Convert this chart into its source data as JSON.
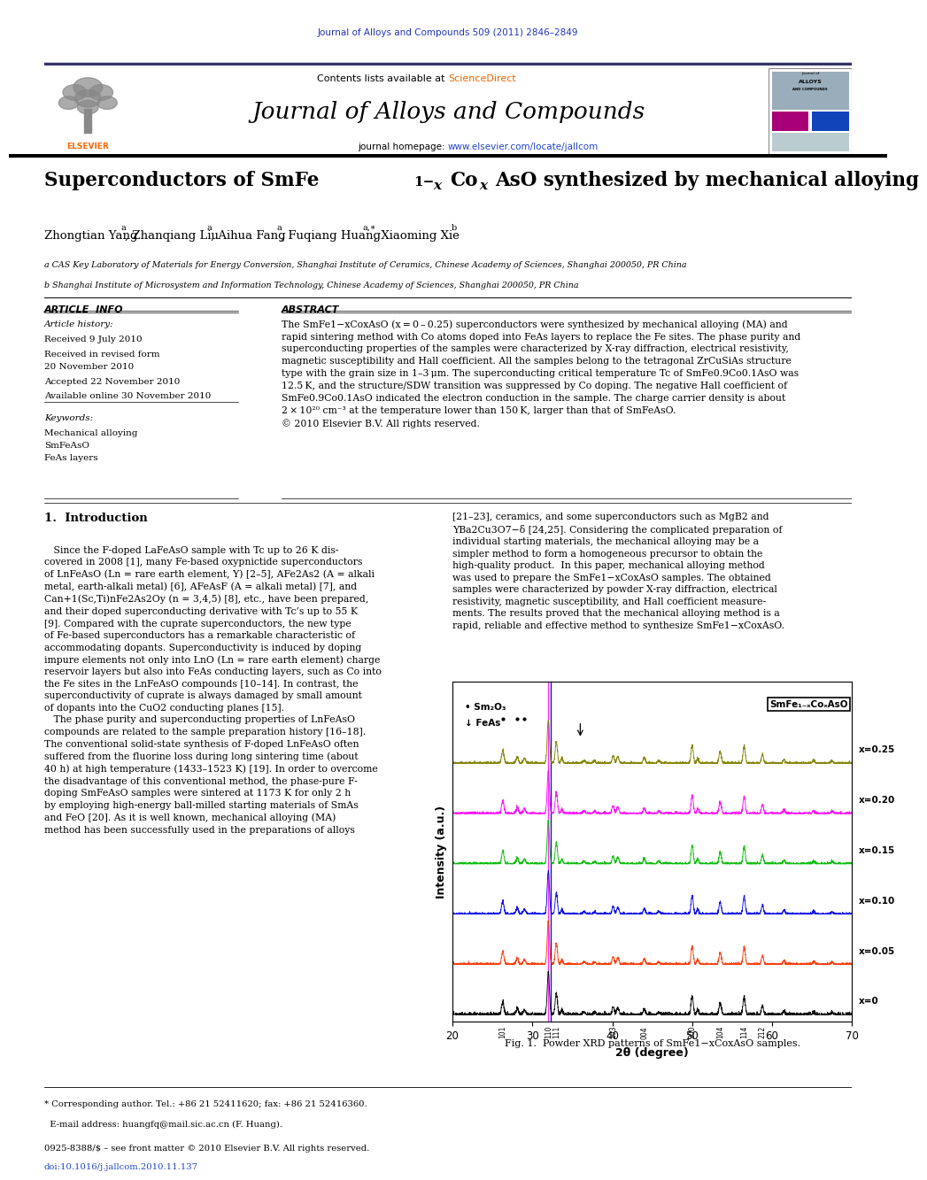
{
  "page_title": "Journal of Alloys and Compounds 509 (2011) 2846–2849",
  "journal_name": "Journal of Alloys and Compounds",
  "journal_homepage_prefix": "journal homepage: ",
  "journal_homepage_url": "www.elsevier.com/locate/jallcom",
  "contents_prefix": "Contents lists available at ",
  "sciencedirect": "ScienceDirect",
  "paper_title_prefix": "Superconductors of SmFe",
  "paper_title_suffix": "AsO synthesized by mechanical alloying",
  "authors_text": "Zhongtian Yang",
  "affil_a": "a CAS Key Laboratory of Materials for Energy Conversion, Shanghai Institute of Ceramics, Chinese Academy of Sciences, Shanghai 200050, PR China",
  "affil_b": "b Shanghai Institute of Microsystem and Information Technology, Chinese Academy of Sciences, Shanghai 200050, PR China",
  "article_info_title": "ARTICLE  INFO",
  "abstract_title": "ABSTRACT",
  "article_history_label": "Article history:",
  "received": "Received 9 July 2010",
  "received_revised1": "Received in revised form",
  "received_revised2": "20 November 2010",
  "accepted": "Accepted 22 November 2010",
  "available": "Available online 30 November 2010",
  "keywords_label": "Keywords:",
  "keyword1": "Mechanical alloying",
  "keyword2": "SmFeAsO",
  "keyword3": "FeAs layers",
  "abstract_body": "The SmFe1−xCoxAsO (x = 0 – 0.25) superconductors were synthesized by mechanical alloying (MA) and\nrapid sintering method with Co atoms doped into FeAs layers to replace the Fe sites. The phase purity and\nsuperconducting properties of the samples were characterized by X-ray diffraction, electrical resistivity,\nmagnetic susceptibility and Hall coefficient. All the samples belong to the tetragonal ZrCuSiAs structure\ntype with the grain size in 1–3 μm. The superconducting critical temperature Tc of SmFe0.9Co0.1AsO was\n12.5 K, and the structure/SDW transition was suppressed by Co doping. The negative Hall coefficient of\nSmFe0.9Co0.1AsO indicated the electron conduction in the sample. The charge carrier density is about\n2 × 10²⁰ cm⁻³ at the temperature lower than 150 K, larger than that of SmFeAsO.\n© 2010 Elsevier B.V. All rights reserved.",
  "intro_title": "1.  Introduction",
  "col1_text": "   Since the F-doped LaFeAsO sample with Tc up to 26 K dis-\ncovered in 2008 [1], many Fe-based oxypnictide superconductors\nof LnFeAsO (Ln = rare earth element, Y) [2–5], AFe2As2 (A = alkali\nmetal, earth-alkali metal) [6], AFeAsF (A = alkali metal) [7], and\nCan+1(Sc,Ti)nFe2As2Oy (n = 3,4,5) [8], etc., have been prepared,\nand their doped superconducting derivative with Tc’s up to 55 K\n[9]. Compared with the cuprate superconductors, the new type\nof Fe-based superconductors has a remarkable characteristic of\naccommodating dopants. Superconductivity is induced by doping\nimpure elements not only into LnO (Ln = rare earth element) charge\nreservoir layers but also into FeAs conducting layers, such as Co into\nthe Fe sites in the LnFeAsO compounds [10–14]. In contrast, the\nsuperconductivity of cuprate is always damaged by small amount\nof dopants into the CuO2 conducting planes [15].\n   The phase purity and superconducting properties of LnFeAsO\ncompounds are related to the sample preparation history [16–18].\nThe conventional solid-state synthesis of F-doped LnFeAsO often\nsuffered from the fluorine loss during long sintering time (about\n40 h) at high temperature (1433–1523 K) [19]. In order to overcome\nthe disadvantage of this conventional method, the phase-pure F-\ndoping SmFeAsO samples were sintered at 1173 K for only 2 h\nby employing high-energy ball-milled starting materials of SmAs\nand FeO [20]. As it is well known, mechanical alloying (MA)\nmethod has been successfully used in the preparations of alloys",
  "col2_text": "[21–23], ceramics, and some superconductors such as MgB2 and\nYBa2Cu3O7−δ [24,25]. Considering the complicated preparation of\nindividual starting materials, the mechanical alloying may be a\nsimpler method to form a homogeneous precursor to obtain the\nhigh-quality product.  In this paper, mechanical alloying method\nwas used to prepare the SmFe1−xCoxAsO samples. The obtained\nsamples were characterized by powder X-ray diffraction, electrical\nresistivity, magnetic susceptibility, and Hall coefficient measure-\nments. The results proved that the mechanical alloying method is a\nrapid, reliable and effective method to synthesize SmFe1−xCoxAsO.",
  "fig_caption_bold": "Fig. 1.",
  "fig_caption_rest": "  Powder XRD patterns of SmFe1−xCoxAsO samples.",
  "xrd_xlabel": "2θ (degree)",
  "xrd_ylabel": "Intensity (a.u.)",
  "xrd_series_labels": [
    "x=0.25",
    "x=0.20",
    "x=0.15",
    "x=0.10",
    "x=0.05",
    "x=0"
  ],
  "xrd_series_colors": [
    "#808000",
    "#FF00FF",
    "#00BB00",
    "#0000EE",
    "#FF3300",
    "#000000"
  ],
  "footer_line1": "* Corresponding author. Tel.: +86 21 52411620; fax: +86 21 52416360.",
  "footer_line2": "  E-mail address: huangfq@mail.sic.ac.cn (F. Huang).",
  "footer_line3": "0925-8388/$ – see front matter © 2010 Elsevier B.V. All rights reserved.",
  "footer_line4": "doi:10.1016/j.jallcom.2010.11.137",
  "elsevier_color": "#FF6600",
  "header_bg": "#F2F2F2",
  "blue_link": "#2244CC",
  "orange_link": "#EE6600"
}
